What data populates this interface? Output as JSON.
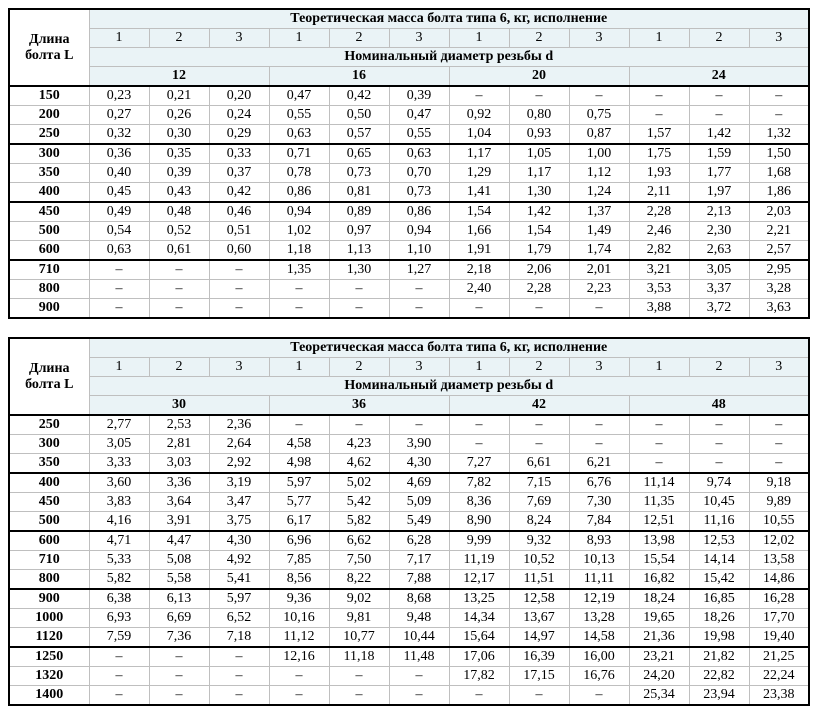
{
  "common": {
    "title": "Теоретическая масса болта типа 6, кг, исполнение",
    "diam_title": "Номинальный диаметр резьбы d",
    "len_title": "Длина болта L",
    "exec_labels": [
      "1",
      "2",
      "3",
      "1",
      "2",
      "3",
      "1",
      "2",
      "3",
      "1",
      "2",
      "3"
    ]
  },
  "table1": {
    "diameters": [
      "12",
      "16",
      "20",
      "24"
    ],
    "rows": [
      {
        "L": "150",
        "v": [
          "0,23",
          "0,21",
          "0,20",
          "0,47",
          "0,42",
          "0,39",
          "–",
          "–",
          "–",
          "–",
          "–",
          "–"
        ],
        "sect": true
      },
      {
        "L": "200",
        "v": [
          "0,27",
          "0,26",
          "0,24",
          "0,55",
          "0,50",
          "0,47",
          "0,92",
          "0,80",
          "0,75",
          "–",
          "–",
          "–"
        ]
      },
      {
        "L": "250",
        "v": [
          "0,32",
          "0,30",
          "0,29",
          "0,63",
          "0,57",
          "0,55",
          "1,04",
          "0,93",
          "0,87",
          "1,57",
          "1,42",
          "1,32"
        ]
      },
      {
        "L": "300",
        "v": [
          "0,36",
          "0,35",
          "0,33",
          "0,71",
          "0,65",
          "0,63",
          "1,17",
          "1,05",
          "1,00",
          "1,75",
          "1,59",
          "1,50"
        ],
        "sect": true
      },
      {
        "L": "350",
        "v": [
          "0,40",
          "0,39",
          "0,37",
          "0,78",
          "0,73",
          "0,70",
          "1,29",
          "1,17",
          "1,12",
          "1,93",
          "1,77",
          "1,68"
        ]
      },
      {
        "L": "400",
        "v": [
          "0,45",
          "0,43",
          "0,42",
          "0,86",
          "0,81",
          "0,73",
          "1,41",
          "1,30",
          "1,24",
          "2,11",
          "1,97",
          "1,86"
        ]
      },
      {
        "L": "450",
        "v": [
          "0,49",
          "0,48",
          "0,46",
          "0,94",
          "0,89",
          "0,86",
          "1,54",
          "1,42",
          "1,37",
          "2,28",
          "2,13",
          "2,03"
        ],
        "sect": true
      },
      {
        "L": "500",
        "v": [
          "0,54",
          "0,52",
          "0,51",
          "1,02",
          "0,97",
          "0,94",
          "1,66",
          "1,54",
          "1,49",
          "2,46",
          "2,30",
          "2,21"
        ]
      },
      {
        "L": "600",
        "v": [
          "0,63",
          "0,61",
          "0,60",
          "1,18",
          "1,13",
          "1,10",
          "1,91",
          "1,79",
          "1,74",
          "2,82",
          "2,63",
          "2,57"
        ]
      },
      {
        "L": "710",
        "v": [
          "–",
          "–",
          "–",
          "1,35",
          "1,30",
          "1,27",
          "2,18",
          "2,06",
          "2,01",
          "3,21",
          "3,05",
          "2,95"
        ],
        "sect": true
      },
      {
        "L": "800",
        "v": [
          "–",
          "–",
          "–",
          "–",
          "–",
          "–",
          "2,40",
          "2,28",
          "2,23",
          "3,53",
          "3,37",
          "3,28"
        ]
      },
      {
        "L": "900",
        "v": [
          "–",
          "–",
          "–",
          "–",
          "–",
          "–",
          "–",
          "–",
          "–",
          "3,88",
          "3,72",
          "3,63"
        ]
      }
    ]
  },
  "table2": {
    "diameters": [
      "30",
      "36",
      "42",
      "48"
    ],
    "rows": [
      {
        "L": "250",
        "v": [
          "2,77",
          "2,53",
          "2,36",
          "–",
          "–",
          "–",
          "–",
          "–",
          "–",
          "–",
          "–",
          "–"
        ],
        "sect": true
      },
      {
        "L": "300",
        "v": [
          "3,05",
          "2,81",
          "2,64",
          "4,58",
          "4,23",
          "3,90",
          "–",
          "–",
          "–",
          "–",
          "–",
          "–"
        ]
      },
      {
        "L": "350",
        "v": [
          "3,33",
          "3,03",
          "2,92",
          "4,98",
          "4,62",
          "4,30",
          "7,27",
          "6,61",
          "6,21",
          "–",
          "–",
          "–"
        ]
      },
      {
        "L": "400",
        "v": [
          "3,60",
          "3,36",
          "3,19",
          "5,97",
          "5,02",
          "4,69",
          "7,82",
          "7,15",
          "6,76",
          "11,14",
          "9,74",
          "9,18"
        ],
        "sect": true
      },
      {
        "L": "450",
        "v": [
          "3,83",
          "3,64",
          "3,47",
          "5,77",
          "5,42",
          "5,09",
          "8,36",
          "7,69",
          "7,30",
          "11,35",
          "10,45",
          "9,89"
        ]
      },
      {
        "L": "500",
        "v": [
          "4,16",
          "3,91",
          "3,75",
          "6,17",
          "5,82",
          "5,49",
          "8,90",
          "8,24",
          "7,84",
          "12,51",
          "11,16",
          "10,55"
        ]
      },
      {
        "L": "600",
        "v": [
          "4,71",
          "4,47",
          "4,30",
          "6,96",
          "6,62",
          "6,28",
          "9,99",
          "9,32",
          "8,93",
          "13,98",
          "12,53",
          "12,02"
        ],
        "sect": true
      },
      {
        "L": "710",
        "v": [
          "5,33",
          "5,08",
          "4,92",
          "7,85",
          "7,50",
          "7,17",
          "11,19",
          "10,52",
          "10,13",
          "15,54",
          "14,14",
          "13,58"
        ]
      },
      {
        "L": "800",
        "v": [
          "5,82",
          "5,58",
          "5,41",
          "8,56",
          "8,22",
          "7,88",
          "12,17",
          "11,51",
          "11,11",
          "16,82",
          "15,42",
          "14,86"
        ]
      },
      {
        "L": "900",
        "v": [
          "6,38",
          "6,13",
          "5,97",
          "9,36",
          "9,02",
          "8,68",
          "13,25",
          "12,58",
          "12,19",
          "18,24",
          "16,85",
          "16,28"
        ],
        "sect": true
      },
      {
        "L": "1000",
        "v": [
          "6,93",
          "6,69",
          "6,52",
          "10,16",
          "9,81",
          "9,48",
          "14,34",
          "13,67",
          "13,28",
          "19,65",
          "18,26",
          "17,70"
        ]
      },
      {
        "L": "1120",
        "v": [
          "7,59",
          "7,36",
          "7,18",
          "11,12",
          "10,77",
          "10,44",
          "15,64",
          "14,97",
          "14,58",
          "21,36",
          "19,98",
          "19,40"
        ]
      },
      {
        "L": "1250",
        "v": [
          "–",
          "–",
          "–",
          "12,16",
          "11,18",
          "11,48",
          "17,06",
          "16,39",
          "16,00",
          "23,21",
          "21,82",
          "21,25"
        ],
        "sect": true
      },
      {
        "L": "1320",
        "v": [
          "–",
          "–",
          "–",
          "–",
          "–",
          "–",
          "17,82",
          "17,15",
          "16,76",
          "24,20",
          "22,82",
          "22,24"
        ]
      },
      {
        "L": "1400",
        "v": [
          "–",
          "–",
          "–",
          "–",
          "–",
          "–",
          "–",
          "–",
          "–",
          "25,34",
          "23,94",
          "23,38"
        ]
      }
    ]
  }
}
